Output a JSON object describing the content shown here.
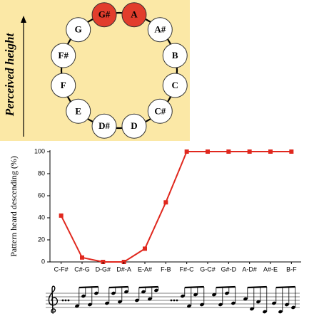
{
  "pitch_circle": {
    "axis_label": "Perceived height",
    "ring_color": "#000000",
    "notes": [
      {
        "label": "A",
        "color": "#e23d2c"
      },
      {
        "label": "A#",
        "color": "#ffffff"
      },
      {
        "label": "B",
        "color": "#ffffff"
      },
      {
        "label": "C",
        "color": "#ffffff"
      },
      {
        "label": "C#",
        "color": "#ffffff"
      },
      {
        "label": "D",
        "color": "#ffffff"
      },
      {
        "label": "D#",
        "color": "#ffffff"
      },
      {
        "label": "E",
        "color": "#ffffff"
      },
      {
        "label": "F",
        "color": "#ffffff"
      },
      {
        "label": "F#",
        "color": "#ffffff"
      },
      {
        "label": "G",
        "color": "#ffffff"
      },
      {
        "label": "G#",
        "color": "#e23d2c"
      }
    ]
  },
  "chart_data": {
    "type": "line",
    "y_label": "Pattern heard descending (%)",
    "categories": [
      "C-F#",
      "C#-G",
      "D-G#",
      "D#-A",
      "E-A#",
      "F-B",
      "F#-C",
      "G-C#",
      "G#-D",
      "A-D#",
      "A#-E",
      "B-F"
    ],
    "values": [
      42,
      4,
      0,
      0,
      12,
      54,
      100,
      100,
      100,
      100,
      100,
      100
    ],
    "color": "#e0281e",
    "ylim": [
      0,
      100
    ],
    "yticks": [
      0,
      20,
      40,
      60,
      80,
      100
    ],
    "grid": false
  }
}
